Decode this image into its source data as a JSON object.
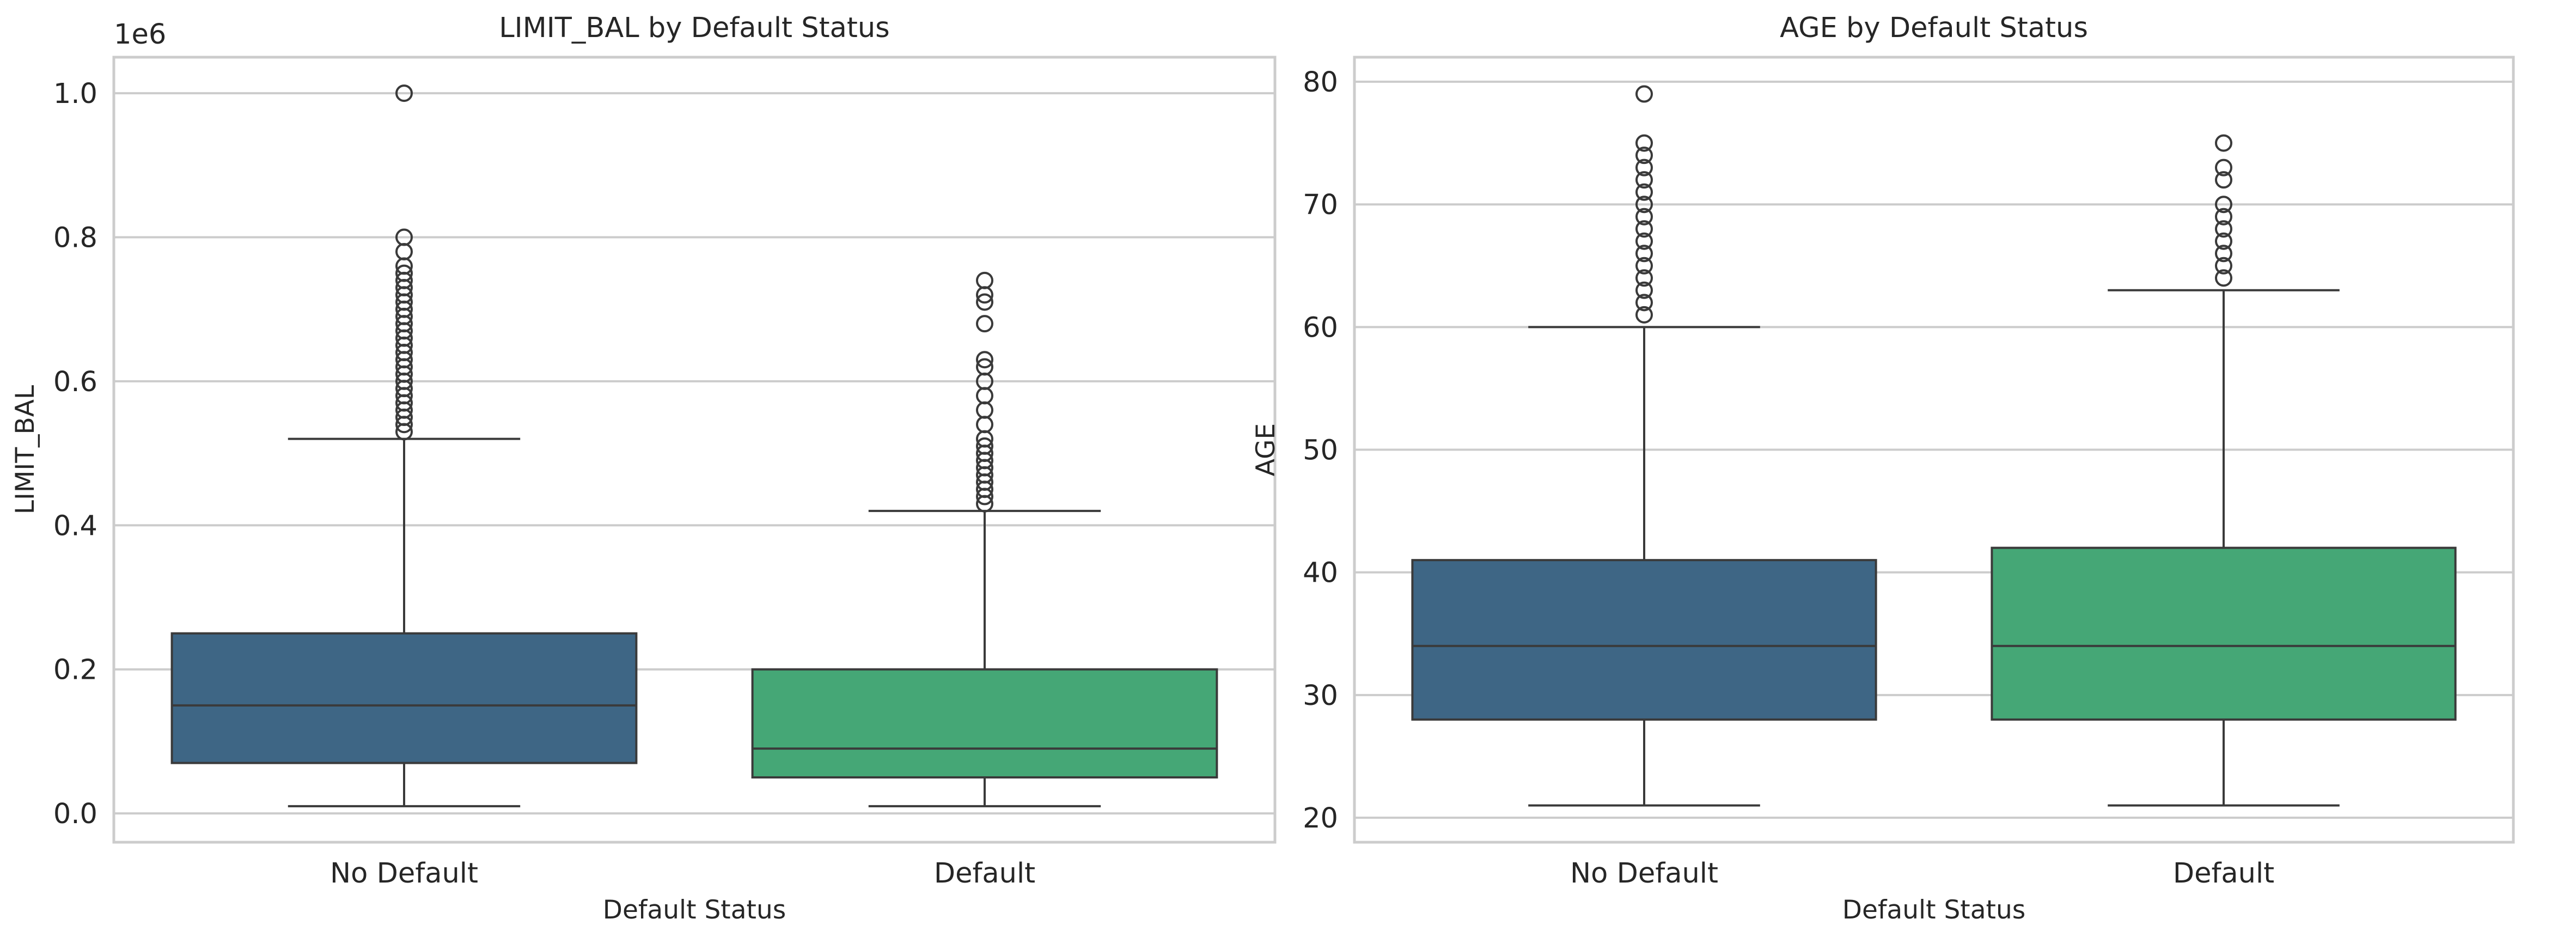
{
  "chart_data": [
    {
      "type": "box",
      "title": "LIMIT_BAL by Default Status",
      "xlabel": "Default Status",
      "ylabel": "LIMIT_BAL",
      "offset_label": "1e6",
      "ylim": [
        -0.04,
        1.05
      ],
      "yticks": [
        0.0,
        0.2,
        0.4,
        0.6,
        0.8,
        1.0
      ],
      "ytick_labels": [
        "0.0",
        "0.2",
        "0.4",
        "0.6",
        "0.8",
        "1.0"
      ],
      "grid": true,
      "categories": [
        "No Default",
        "Default"
      ],
      "boxes": [
        {
          "category": "No Default",
          "color": "#3e6685",
          "whisker_low": 0.01,
          "q1": 0.07,
          "median": 0.15,
          "q3": 0.25,
          "whisker_high": 0.52,
          "fliers": [
            0.53,
            0.54,
            0.55,
            0.56,
            0.57,
            0.58,
            0.59,
            0.6,
            0.61,
            0.62,
            0.63,
            0.64,
            0.65,
            0.66,
            0.67,
            0.68,
            0.69,
            0.7,
            0.71,
            0.72,
            0.73,
            0.74,
            0.75,
            0.76,
            0.78,
            0.8,
            1.0
          ]
        },
        {
          "category": "Default",
          "color": "#45a776",
          "whisker_low": 0.01,
          "q1": 0.05,
          "median": 0.09,
          "q3": 0.2,
          "whisker_high": 0.42,
          "fliers": [
            0.43,
            0.44,
            0.45,
            0.46,
            0.47,
            0.48,
            0.49,
            0.5,
            0.51,
            0.52,
            0.54,
            0.56,
            0.58,
            0.6,
            0.62,
            0.63,
            0.68,
            0.71,
            0.72,
            0.74
          ]
        }
      ]
    },
    {
      "type": "box",
      "title": "AGE by Default Status",
      "xlabel": "Default Status",
      "ylabel": "AGE",
      "offset_label": "",
      "ylim": [
        18,
        82
      ],
      "yticks": [
        20,
        30,
        40,
        50,
        60,
        70,
        80
      ],
      "ytick_labels": [
        "20",
        "30",
        "40",
        "50",
        "60",
        "70",
        "80"
      ],
      "grid": true,
      "categories": [
        "No Default",
        "Default"
      ],
      "boxes": [
        {
          "category": "No Default",
          "color": "#3e6685",
          "whisker_low": 21,
          "q1": 28,
          "median": 34,
          "q3": 41,
          "whisker_high": 60,
          "fliers": [
            61,
            62,
            63,
            64,
            65,
            66,
            67,
            68,
            69,
            70,
            71,
            72,
            73,
            74,
            75,
            79
          ]
        },
        {
          "category": "Default",
          "color": "#45a776",
          "whisker_low": 21,
          "q1": 28,
          "median": 34,
          "q3": 42,
          "whisker_high": 63,
          "fliers": [
            64,
            65,
            66,
            67,
            68,
            69,
            70,
            72,
            73,
            75
          ]
        }
      ]
    }
  ]
}
